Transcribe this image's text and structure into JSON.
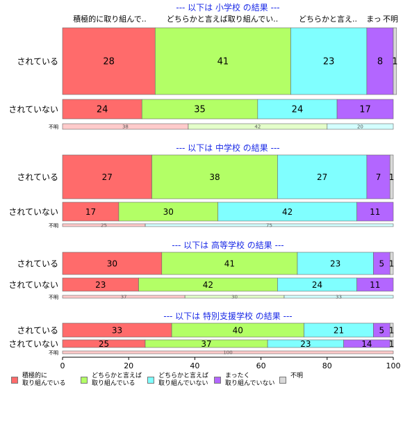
{
  "chart_data": {
    "type": "bar",
    "orientation": "horizontal",
    "stacked": "percent",
    "xlim": [
      0,
      100
    ],
    "xticks": [
      0,
      20,
      40,
      60,
      80,
      100
    ],
    "category_labels": [
      "積極的に\n取り組んでいる",
      "どちらかと言えば\n取り組んでいる",
      "どちらかと言えば\n取り組んでいない",
      "まったく\n取り組んでいない",
      "不明"
    ],
    "header_labels": [
      "積極的に取り組んで..",
      "どちらかと言えば取り組んでい..",
      "どちらかと言え..",
      "まっ",
      "不明"
    ],
    "colors": [
      "#ff6b6b",
      "#b3ff66",
      "#80ffff",
      "#b366ff",
      "#d9d9d9"
    ],
    "groups": [
      {
        "title": "--- 以下は 小学校 の結果 ---",
        "rows": [
          {
            "label": "されている",
            "values": [
              28,
              41,
              23,
              8,
              1
            ]
          },
          {
            "label": "されていない",
            "values": [
              24,
              35,
              24,
              17,
              0
            ]
          },
          {
            "label": "不明",
            "values": [
              38,
              42,
              20,
              0,
              0
            ]
          }
        ]
      },
      {
        "title": "--- 以下は 中学校 の結果 ---",
        "rows": [
          {
            "label": "されている",
            "values": [
              27,
              38,
              27,
              7,
              1
            ]
          },
          {
            "label": "されていない",
            "values": [
              17,
              30,
              42,
              11,
              0
            ]
          },
          {
            "label": "不明",
            "values": [
              25,
              0,
              75,
              0,
              0
            ]
          }
        ]
      },
      {
        "title": "--- 以下は 高等学校 の結果 ---",
        "rows": [
          {
            "label": "されている",
            "values": [
              30,
              41,
              23,
              5,
              1
            ]
          },
          {
            "label": "されていない",
            "values": [
              23,
              42,
              24,
              11,
              0
            ]
          },
          {
            "label": "不明",
            "values": [
              37,
              30,
              33,
              0,
              0
            ]
          }
        ]
      },
      {
        "title": "--- 以下は 特別支援学校 の結果 ---",
        "rows": [
          {
            "label": "されている",
            "values": [
              33,
              40,
              21,
              5,
              1
            ]
          },
          {
            "label": "されていない",
            "values": [
              25,
              37,
              23,
              14,
              1
            ]
          },
          {
            "label": "不明",
            "values": [
              100,
              0,
              0,
              0,
              0
            ]
          }
        ]
      }
    ]
  }
}
